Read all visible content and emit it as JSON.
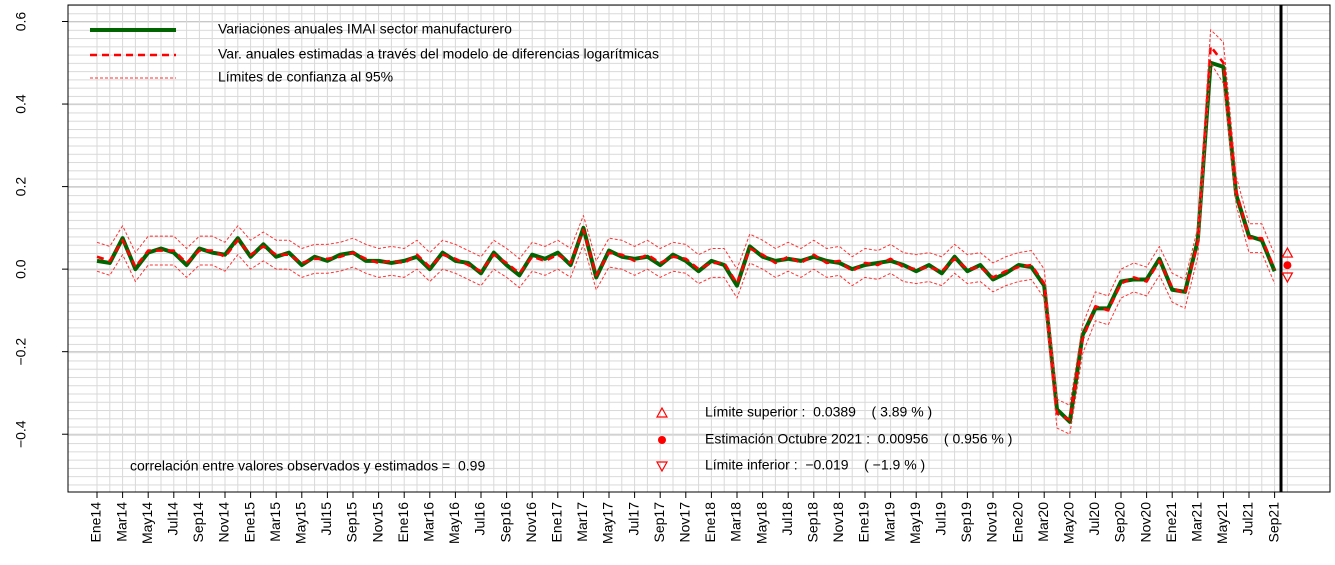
{
  "chart_data": {
    "type": "line",
    "categories": [
      "Ene14",
      null,
      "Mar14",
      null,
      "May14",
      null,
      "Jul14",
      null,
      "Sep14",
      null,
      "Nov14",
      null,
      "Ene15",
      null,
      "Mar15",
      null,
      "May15",
      null,
      "Jul15",
      null,
      "Sep15",
      null,
      "Nov15",
      null,
      "Ene16",
      null,
      "Mar16",
      null,
      "May16",
      null,
      "Jul16",
      null,
      "Sep16",
      null,
      "Nov16",
      null,
      "Ene17",
      null,
      "Mar17",
      null,
      "May17",
      null,
      "Jul17",
      null,
      "Sep17",
      null,
      "Nov17",
      null,
      "Ene18",
      null,
      "Mar18",
      null,
      "May18",
      null,
      "Jul18",
      null,
      "Sep18",
      null,
      "Nov18",
      null,
      "Ene19",
      null,
      "Mar19",
      null,
      "May19",
      null,
      "Jul19",
      null,
      "Sep19",
      null,
      "Nov19",
      null,
      "Ene20",
      null,
      "Mar20",
      null,
      "May20",
      null,
      "Jul20",
      null,
      "Sep20",
      null,
      "Nov20",
      null,
      "Ene21",
      null,
      "Mar21",
      null,
      "May21",
      null,
      "Jul21",
      null,
      "Sep21",
      null
    ],
    "series": [
      {
        "name": "Variaciones anuales IMAI sector manufacturero",
        "color": "#006400",
        "style": "solid",
        "values": [
          0.02,
          0.015,
          0.075,
          0.0,
          0.04,
          0.05,
          0.04,
          0.01,
          0.05,
          0.04,
          0.035,
          0.075,
          0.03,
          0.06,
          0.03,
          0.04,
          0.01,
          0.03,
          0.02,
          0.035,
          0.04,
          0.02,
          0.02,
          0.015,
          0.02,
          0.03,
          0.0,
          0.04,
          0.02,
          0.015,
          -0.01,
          0.04,
          0.01,
          -0.015,
          0.035,
          0.025,
          0.04,
          0.01,
          0.1,
          -0.02,
          0.045,
          0.03,
          0.025,
          0.03,
          0.01,
          0.035,
          0.02,
          -0.005,
          0.02,
          0.01,
          -0.04,
          0.055,
          0.03,
          0.02,
          0.025,
          0.02,
          0.03,
          0.02,
          0.015,
          0.0,
          0.01,
          0.015,
          0.02,
          0.01,
          -0.005,
          0.01,
          -0.01,
          0.03,
          -0.005,
          0.01,
          -0.025,
          -0.01,
          0.01,
          0.005,
          -0.04,
          -0.34,
          -0.37,
          -0.16,
          -0.095,
          -0.095,
          -0.03,
          -0.025,
          -0.025,
          0.025,
          -0.05,
          -0.055,
          0.07,
          0.5,
          0.49,
          0.18,
          0.08,
          0.07,
          -0.005,
          null
        ]
      },
      {
        "name": "Var. anuales estimadas a través del modelo de diferencias logarítmicas",
        "color": "#ff0000",
        "style": "dashed",
        "values": [
          0.03,
          0.02,
          0.07,
          0.005,
          0.045,
          0.045,
          0.045,
          0.015,
          0.045,
          0.045,
          0.03,
          0.07,
          0.035,
          0.055,
          0.035,
          0.035,
          0.015,
          0.025,
          0.025,
          0.03,
          0.04,
          0.025,
          0.015,
          0.02,
          0.015,
          0.035,
          0.005,
          0.035,
          0.025,
          0.01,
          -0.005,
          0.035,
          0.015,
          -0.01,
          0.03,
          0.02,
          0.035,
          0.015,
          0.095,
          -0.015,
          0.04,
          0.035,
          0.02,
          0.035,
          0.015,
          0.03,
          0.025,
          0.0,
          0.015,
          0.015,
          -0.035,
          0.05,
          0.035,
          0.015,
          0.03,
          0.015,
          0.035,
          0.015,
          0.02,
          -0.005,
          0.015,
          0.01,
          0.025,
          0.005,
          0.0,
          0.005,
          -0.005,
          0.025,
          0.0,
          0.005,
          -0.02,
          -0.005,
          0.005,
          0.01,
          -0.035,
          -0.35,
          -0.365,
          -0.17,
          -0.09,
          -0.1,
          -0.035,
          -0.02,
          -0.03,
          0.02,
          -0.045,
          -0.06,
          0.065,
          0.54,
          0.5,
          0.19,
          0.075,
          0.075,
          0.0,
          null
        ]
      },
      {
        "name": "Límites de confianza al 95%",
        "color": "#ff3333",
        "style": "thin",
        "values": [
          0.065,
          0.055,
          0.105,
          0.04,
          0.08,
          0.08,
          0.08,
          0.05,
          0.08,
          0.08,
          0.065,
          0.105,
          0.07,
          0.09,
          0.07,
          0.07,
          0.05,
          0.06,
          0.06,
          0.065,
          0.075,
          0.06,
          0.05,
          0.055,
          0.05,
          0.07,
          0.04,
          0.07,
          0.06,
          0.045,
          0.03,
          0.07,
          0.05,
          0.025,
          0.065,
          0.055,
          0.07,
          0.05,
          0.13,
          0.02,
          0.075,
          0.07,
          0.055,
          0.07,
          0.05,
          0.065,
          0.06,
          0.035,
          0.05,
          0.05,
          0.0,
          0.085,
          0.07,
          0.05,
          0.065,
          0.05,
          0.07,
          0.05,
          0.055,
          0.03,
          0.05,
          0.045,
          0.06,
          0.04,
          0.035,
          0.04,
          0.03,
          0.06,
          0.035,
          0.04,
          0.015,
          0.03,
          0.04,
          0.045,
          0.0,
          -0.315,
          -0.33,
          -0.135,
          -0.055,
          -0.065,
          0.0,
          0.015,
          0.005,
          0.055,
          -0.01,
          -0.025,
          0.1,
          0.58,
          0.55,
          0.225,
          0.11,
          0.11,
          0.035,
          null
        ]
      },
      {
        "color": "#ff3333",
        "style": "thin",
        "values": [
          -0.005,
          -0.015,
          0.035,
          -0.03,
          0.01,
          0.01,
          0.01,
          -0.02,
          0.01,
          0.01,
          -0.005,
          0.035,
          0.0,
          0.02,
          0.0,
          0.0,
          -0.02,
          -0.01,
          -0.01,
          -0.005,
          0.005,
          -0.01,
          -0.02,
          -0.015,
          -0.02,
          0.0,
          -0.03,
          0.0,
          -0.01,
          -0.025,
          -0.04,
          0.0,
          -0.02,
          -0.045,
          -0.005,
          -0.015,
          0.0,
          -0.02,
          0.06,
          -0.05,
          0.005,
          0.0,
          -0.015,
          0.0,
          -0.02,
          -0.005,
          -0.01,
          -0.035,
          -0.02,
          -0.02,
          -0.07,
          0.015,
          0.0,
          -0.02,
          -0.005,
          -0.02,
          0.0,
          -0.02,
          -0.015,
          -0.04,
          -0.02,
          -0.025,
          -0.01,
          -0.03,
          -0.035,
          -0.03,
          -0.04,
          -0.01,
          -0.035,
          -0.03,
          -0.055,
          -0.04,
          -0.03,
          -0.025,
          -0.07,
          -0.385,
          -0.4,
          -0.205,
          -0.125,
          -0.135,
          -0.07,
          -0.055,
          -0.065,
          -0.015,
          -0.08,
          -0.095,
          0.03,
          0.5,
          0.45,
          0.155,
          0.04,
          0.04,
          -0.035,
          null
        ]
      }
    ],
    "forecast": {
      "upper": 0.0389,
      "estimate": 0.00956,
      "lower": -0.019,
      "color": "#ff0000",
      "labels": [
        "Límite superior :  0.0389    ( 3.89 % )",
        "Estimación Octubre 2021 :  0.00956    ( 0.956 % )",
        "Límite inferior :  −0.019    ( −1.9 % )"
      ]
    },
    "annotation": "correlación entre valores observados y estimados =  0.99",
    "ylim": [
      -0.54,
      0.64
    ],
    "yticks": [
      {
        "value": -0.4,
        "label": "−0.4"
      },
      {
        "value": -0.2,
        "label": "−0.2"
      },
      {
        "value": 0,
        "label": "0.0"
      },
      0.2,
      0.4,
      0.6
    ],
    "grid": true
  }
}
